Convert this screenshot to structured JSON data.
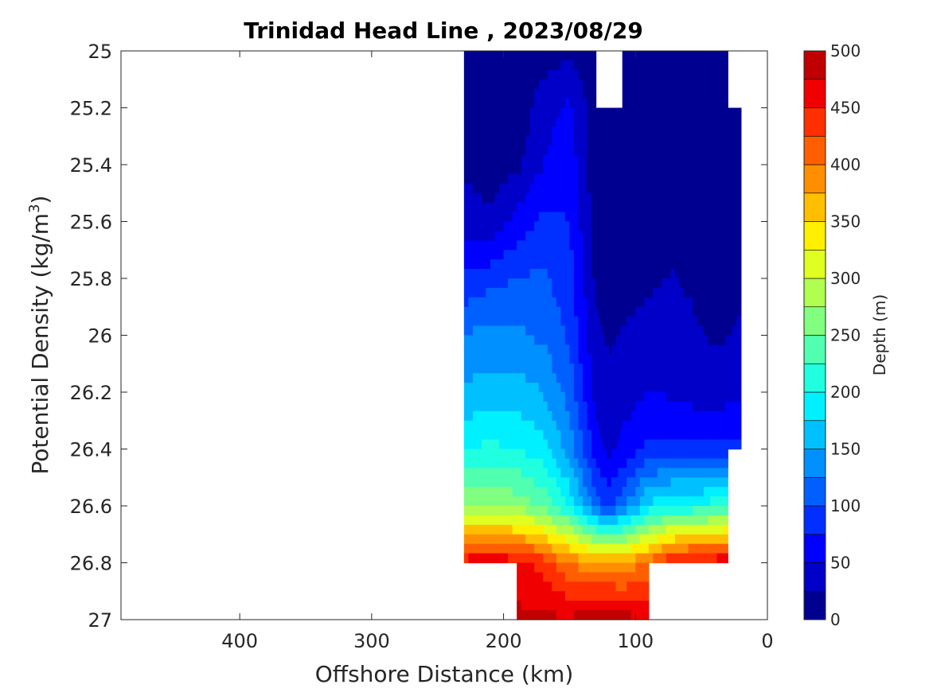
{
  "chart_data": {
    "type": "contourf",
    "title": "Trinidad Head Line , 2023/08/29",
    "xlabel": "Offshore Distance (km)",
    "ylabel": "Potential Density (kg/m",
    "ylabel_sup": "3",
    "ylabel_close": ")",
    "xlim": [
      490,
      0
    ],
    "ylim": [
      27,
      25
    ],
    "x_reversed": true,
    "y_reversed": true,
    "xticks": [
      400,
      300,
      200,
      100,
      0
    ],
    "xtick_labels": [
      "400",
      "300",
      "200",
      "100",
      "0"
    ],
    "yticks": [
      25,
      25.2,
      25.4,
      25.6,
      25.8,
      26,
      26.2,
      26.4,
      26.6,
      26.8,
      27
    ],
    "ytick_labels": [
      "25",
      "25.2",
      "25.4",
      "25.6",
      "25.8",
      "26",
      "26.2",
      "26.4",
      "26.6",
      "26.8",
      "27"
    ],
    "colorbar": {
      "label": "Depth (m)",
      "levels": [
        0,
        25,
        50,
        75,
        100,
        125,
        150,
        175,
        200,
        225,
        250,
        275,
        300,
        325,
        350,
        375,
        400,
        425,
        450,
        475,
        500
      ],
      "ticks": [
        0,
        50,
        100,
        150,
        200,
        250,
        300,
        350,
        400,
        450,
        500
      ],
      "tick_labels": [
        "0",
        "50",
        "100",
        "150",
        "200",
        "250",
        "300",
        "350",
        "400",
        "450",
        "500"
      ],
      "colormap": "jet",
      "colors": [
        "#000090",
        "#0000C8",
        "#0000FF",
        "#0030FF",
        "#0060FF",
        "#0090FF",
        "#00C0FF",
        "#00F0FF",
        "#20FFDF",
        "#50FFAF",
        "#80FF80",
        "#B0FF50",
        "#E0FF20",
        "#FFEF00",
        "#FFBF00",
        "#FF8F00",
        "#FF5F00",
        "#FF2F00",
        "#F00000",
        "#C00000"
      ]
    },
    "stations_km": [
      230,
      210,
      190,
      170,
      150,
      130,
      120,
      110,
      90,
      70,
      50,
      40,
      30,
      20
    ],
    "sigma_levels": [
      25,
      25.2,
      25.4,
      25.6,
      25.8,
      26,
      26.2,
      26.4,
      26.6,
      26.8,
      27
    ],
    "depth_m": [
      [
        6,
        6,
        6,
        12,
        20,
        12,
        null,
        6,
        6,
        6,
        6,
        6,
        8,
        null
      ],
      [
        8,
        6,
        6,
        40,
        55,
        6,
        4,
        6,
        6,
        6,
        6,
        6,
        10,
        14
      ],
      [
        20,
        10,
        18,
        50,
        65,
        8,
        6,
        8,
        10,
        8,
        10,
        10,
        12,
        16
      ],
      [
        40,
        30,
        60,
        80,
        75,
        12,
        10,
        12,
        14,
        18,
        12,
        12,
        14,
        18
      ],
      [
        80,
        90,
        100,
        105,
        85,
        20,
        16,
        18,
        22,
        26,
        18,
        16,
        18,
        20
      ],
      [
        125,
        135,
        130,
        120,
        95,
        30,
        22,
        26,
        30,
        36,
        26,
        22,
        24,
        28
      ],
      [
        155,
        160,
        160,
        150,
        115,
        42,
        32,
        38,
        50,
        46,
        36,
        36,
        40,
        44
      ],
      [
        200,
        205,
        200,
        185,
        140,
        60,
        44,
        56,
        80,
        84,
        80,
        80,
        82,
        84
      ],
      [
        275,
        275,
        265,
        245,
        195,
        110,
        90,
        115,
        180,
        200,
        205,
        215,
        220,
        null
      ],
      [
        465,
        470,
        465,
        440,
        400,
        380,
        375,
        375,
        410,
        460,
        470,
        470,
        475,
        null
      ],
      [
        null,
        null,
        480,
        480,
        480,
        490,
        500,
        490,
        470,
        null,
        null,
        null,
        null,
        null
      ]
    ]
  }
}
